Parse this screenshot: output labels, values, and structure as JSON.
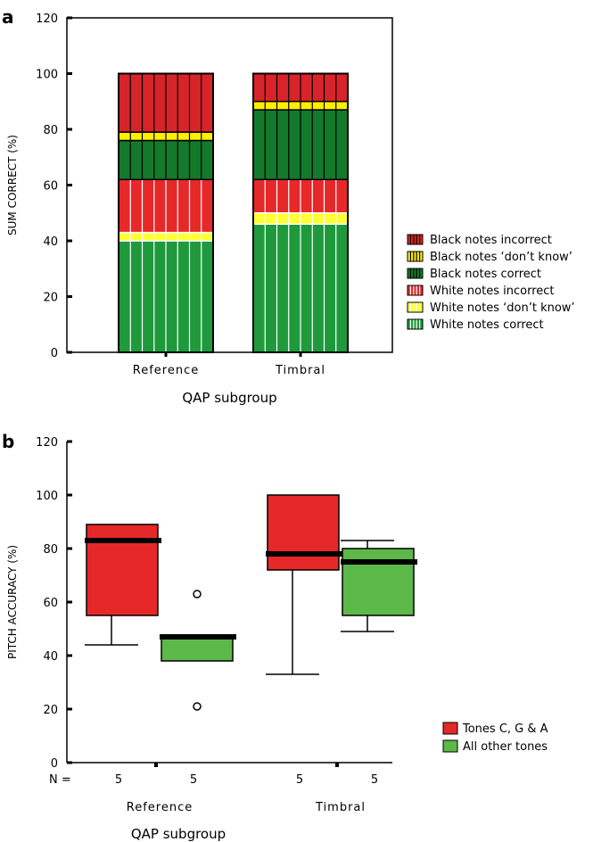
{
  "chart_data": [
    {
      "panel_label": "a",
      "type": "bar",
      "stacked": true,
      "categories": [
        "Reference",
        "Timbral"
      ],
      "xlabel": "QAP subgroup",
      "ylabel": "SUM CORRECT (%)",
      "ylim": [
        0,
        120
      ],
      "yticks": [
        0,
        20,
        40,
        60,
        80,
        100,
        120
      ],
      "legend_position": "right",
      "series": [
        {
          "name": "White notes correct",
          "values": [
            40,
            46
          ],
          "color": "#1e9a3c",
          "hatch": "#ffffff"
        },
        {
          "name": "White notes ‘don’t know’",
          "values": [
            3,
            4
          ],
          "color": "#ffff33",
          "hatch": "#ffffff"
        },
        {
          "name": "White notes incorrect",
          "values": [
            19,
            12
          ],
          "color": "#e62829",
          "hatch": "#ffffff"
        },
        {
          "name": "Black notes correct",
          "values": [
            14,
            25
          ],
          "color": "#137a2b",
          "hatch": "#000000"
        },
        {
          "name": "Black notes ‘don’t know’",
          "values": [
            3,
            3
          ],
          "color": "#ffee00",
          "hatch": "#000000"
        },
        {
          "name": "Black notes incorrect",
          "values": [
            21,
            10
          ],
          "color": "#d7242a",
          "hatch": "#000000"
        }
      ],
      "legend_order": [
        "Black notes incorrect",
        "Black notes ‘don’t know’",
        "Black notes correct",
        "White notes incorrect",
        "White notes ‘don’t know’",
        "White notes correct"
      ]
    },
    {
      "panel_label": "b",
      "type": "box",
      "categories": [
        "Reference",
        "Timbral"
      ],
      "xlabel": "QAP subgroup",
      "ylabel": "PITCH ACCURACY (%)",
      "ylim": [
        0,
        120
      ],
      "yticks": [
        0,
        20,
        40,
        60,
        80,
        100,
        120
      ],
      "n_label": "N =",
      "legend_position": "right",
      "series": [
        {
          "name": "Tones C, G & A",
          "color": "#e62829",
          "boxes": [
            {
              "category": "Reference",
              "n": "5",
              "whisker_low": 44,
              "q1": 55,
              "median": 83,
              "q3": 89,
              "whisker_high": 89,
              "outliers": []
            },
            {
              "category": "Timbral",
              "n": "5",
              "whisker_low": 33,
              "q1": 72,
              "median": 78,
              "q3": 100,
              "whisker_high": 100,
              "outliers": []
            }
          ]
        },
        {
          "name": "All other tones",
          "color": "#5cb848",
          "boxes": [
            {
              "category": "Reference",
              "n": "5",
              "whisker_low": 38,
              "q1": 38,
              "median": 47,
              "q3": 47,
              "whisker_high": 47,
              "outliers": [
                21,
                63
              ]
            },
            {
              "category": "Timbral",
              "n": "5",
              "whisker_low": 49,
              "q1": 55,
              "median": 75,
              "q3": 80,
              "whisker_high": 83,
              "outliers": []
            }
          ]
        }
      ]
    }
  ]
}
